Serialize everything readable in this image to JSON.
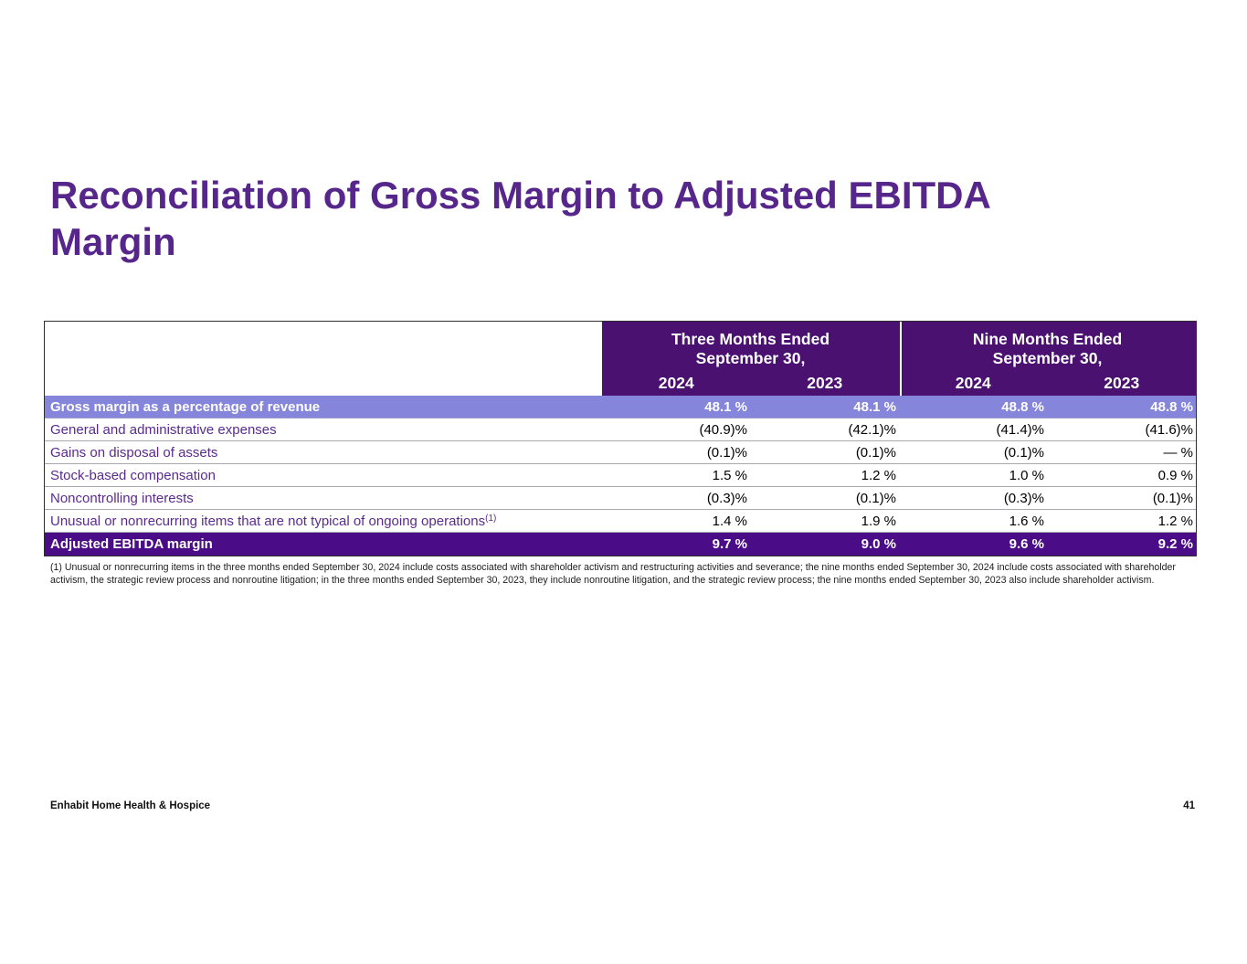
{
  "slide": {
    "title": "Reconciliation of Gross Margin to Adjusted EBITDA Margin",
    "footer_left": "Enhabit Home Health & Hospice",
    "page_number": "41"
  },
  "table": {
    "col_groups": [
      {
        "line1": "Three Months Ended",
        "line2": "September 30,",
        "years": [
          "2024",
          "2023"
        ]
      },
      {
        "line1": "Nine Months Ended",
        "line2": "September 30,",
        "years": [
          "2024",
          "2023"
        ]
      }
    ],
    "rows": [
      {
        "label": "Gross margin as a percentage of revenue",
        "style": "light",
        "values": [
          "48.1 %",
          "48.1 %",
          "48.8 %",
          "48.8 %"
        ]
      },
      {
        "label": "General and administrative expenses",
        "style": "normal",
        "values": [
          "(40.9)%",
          "(42.1)%",
          "(41.4)%",
          "(41.6)%"
        ]
      },
      {
        "label": "Gains on disposal of assets",
        "style": "normal",
        "values": [
          "(0.1)%",
          "(0.1)%",
          "(0.1)%",
          "— %"
        ]
      },
      {
        "label": "Stock-based compensation",
        "style": "normal",
        "values": [
          "1.5 %",
          "1.2 %",
          "1.0 %",
          "0.9 %"
        ]
      },
      {
        "label": "Noncontrolling interests",
        "style": "normal",
        "values": [
          "(0.3)%",
          "(0.1)%",
          "(0.3)%",
          "(0.1)%"
        ]
      },
      {
        "label": "Unusual or nonrecurring items that are not typical of ongoing operations",
        "label_superscript": "(1)",
        "style": "normal",
        "values": [
          "1.4 %",
          "1.9 %",
          "1.6 %",
          "1.2 %"
        ]
      },
      {
        "label": "Adjusted EBITDA margin",
        "style": "dark",
        "values": [
          "9.7 %",
          "9.0 %",
          "9.6 %",
          "9.2 %"
        ]
      }
    ]
  },
  "footnote": "(1) Unusual or nonrecurring items in the three months ended September 30, 2024 include costs associated with shareholder activism and restructuring activities and severance; the nine months ended September 30, 2024 include costs associated with shareholder activism, the strategic review process and nonroutine litigation; in the three months ended September 30, 2023, they include nonroutine litigation, and the strategic review process; the nine months ended September 30, 2023 also include shareholder activism.",
  "colors": {
    "header_purple": "#4A1170",
    "highlight_light": "#8585DB",
    "highlight_dark": "#4B0C87",
    "label_purple": "#5A2B8E",
    "title_purple": "#56268B"
  }
}
